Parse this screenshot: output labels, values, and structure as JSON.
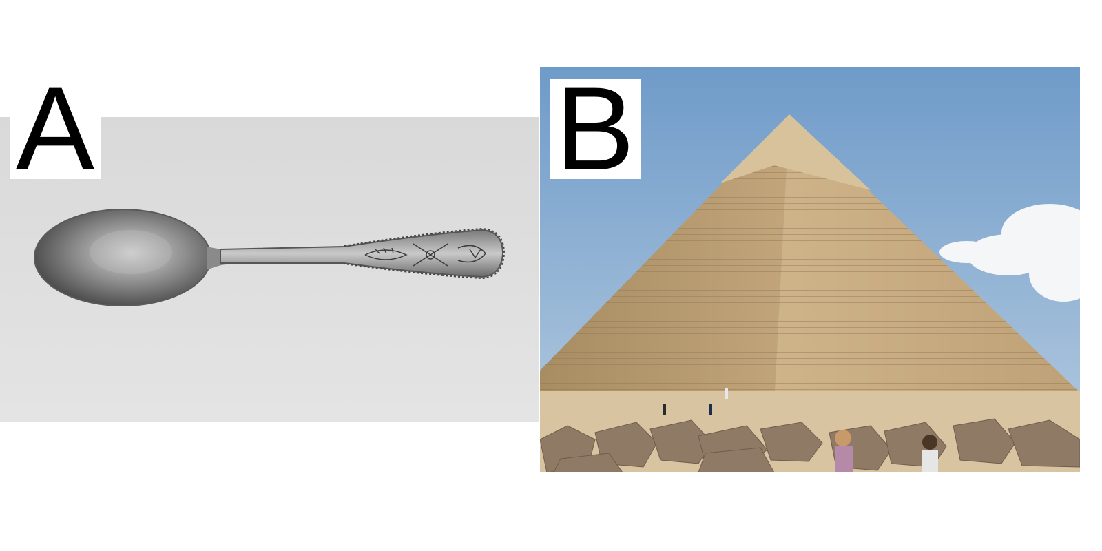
{
  "panels": [
    {
      "id": "A",
      "label": "A",
      "subject": "spoon"
    },
    {
      "id": "B",
      "label": "B",
      "subject": "pyramid"
    }
  ],
  "colors": {
    "page_background": "#ffffff",
    "label_background": "#ffffff",
    "label_text": "#000000",
    "spoon_backdrop": "#e3e3e3",
    "sky": "#7fa7cf",
    "stone": "#c6a77a",
    "sand": "#d8c4a0"
  }
}
